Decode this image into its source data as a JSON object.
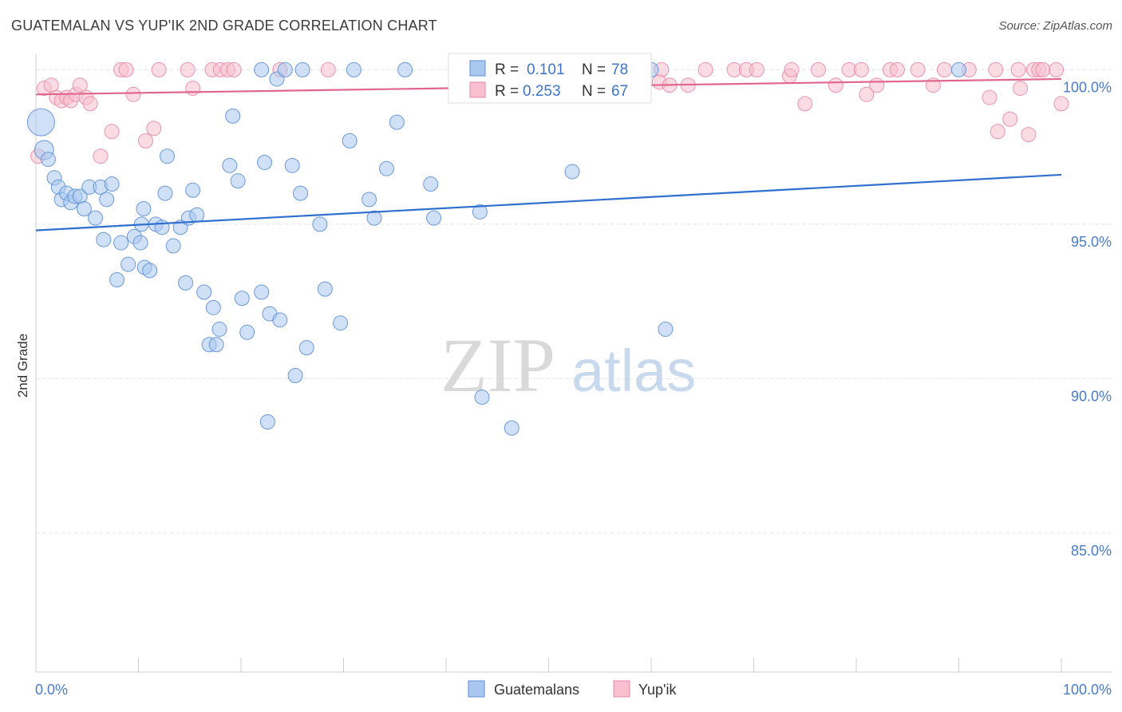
{
  "title": "GUATEMALAN VS YUP'IK 2ND GRADE CORRELATION CHART",
  "source": "Source: ZipAtlas.com",
  "watermark": {
    "zip": "ZIP",
    "atlas": "atlas"
  },
  "colors": {
    "blue_fill": "#a9c8f0",
    "blue_stroke": "#5d8fd6",
    "blue_line": "#2f6fcf",
    "pink_fill": "#f7bfd0",
    "pink_stroke": "#e88aa8",
    "pink_line": "#e06690",
    "tick_label": "#4a7cc9",
    "grid": "#e4e4e4"
  },
  "legend_top": [
    {
      "r_label": "R =",
      "r_value": "0.101",
      "n_label": "N =",
      "n_value": "78"
    },
    {
      "r_label": "R =",
      "r_value": "0.253",
      "n_label": "N =",
      "n_value": "67"
    }
  ],
  "chart_data": {
    "type": "scatter",
    "title": "GUATEMALAN VS YUP'IK 2ND GRADE CORRELATION CHART",
    "xlabel": "",
    "ylabel": "2nd Grade",
    "xlim": [
      0,
      100
    ],
    "ylim": [
      80.5,
      100.5
    ],
    "x_tick_labels": [
      "0.0%",
      "100.0%"
    ],
    "y_ticks": [
      85,
      90,
      95,
      100
    ],
    "y_tick_labels": [
      "85.0%",
      "90.0%",
      "95.0%",
      "100.0%"
    ],
    "grid": true,
    "legend_position": "bottom-center",
    "series": [
      {
        "name": "Guatemalans",
        "color": "#a9c8f0",
        "trend": {
          "x": [
            0,
            100
          ],
          "y": [
            94.8,
            96.6
          ]
        },
        "points": [
          [
            0.5,
            98.3,
            1
          ],
          [
            0.8,
            97.4,
            1
          ],
          [
            1.2,
            97.1,
            1
          ],
          [
            1.8,
            96.5,
            1
          ],
          [
            2.2,
            96.2,
            1
          ],
          [
            2.5,
            95.8,
            1
          ],
          [
            3.0,
            96.0,
            1
          ],
          [
            3.4,
            95.7,
            1
          ],
          [
            3.8,
            95.9,
            1
          ],
          [
            4.3,
            95.9,
            1
          ],
          [
            4.7,
            95.5,
            1
          ],
          [
            5.2,
            96.2,
            1
          ],
          [
            5.8,
            95.2,
            1
          ],
          [
            6.3,
            96.2,
            1
          ],
          [
            6.9,
            95.8,
            1
          ],
          [
            7.4,
            96.3,
            1
          ],
          [
            7.9,
            93.2,
            1
          ],
          [
            8.3,
            94.4,
            1
          ],
          [
            9.0,
            93.7,
            1
          ],
          [
            9.6,
            94.6,
            1
          ],
          [
            10.2,
            94.4,
            1
          ],
          [
            10.6,
            93.6,
            1
          ],
          [
            11.1,
            93.5,
            1
          ],
          [
            6.6,
            94.5,
            1
          ],
          [
            10.3,
            95.0,
            1
          ],
          [
            10.5,
            95.5,
            1
          ],
          [
            11.7,
            95.0,
            1
          ],
          [
            12.3,
            94.9,
            1
          ],
          [
            12.6,
            96.0,
            1
          ],
          [
            12.8,
            97.2,
            1
          ],
          [
            13.4,
            94.3,
            1
          ],
          [
            14.1,
            94.9,
            1
          ],
          [
            14.6,
            93.1,
            1
          ],
          [
            14.9,
            95.2,
            1
          ],
          [
            15.3,
            96.1,
            1
          ],
          [
            15.7,
            95.3,
            1
          ],
          [
            16.4,
            92.8,
            1
          ],
          [
            16.9,
            91.1,
            1
          ],
          [
            17.3,
            92.3,
            1
          ],
          [
            17.6,
            91.1,
            1
          ],
          [
            17.9,
            91.6,
            1
          ],
          [
            18.9,
            96.9,
            1
          ],
          [
            19.2,
            98.5,
            1
          ],
          [
            19.7,
            96.4,
            1
          ],
          [
            20.1,
            92.6,
            1
          ],
          [
            20.6,
            91.5,
            1
          ],
          [
            22.0,
            92.8,
            1
          ],
          [
            22.3,
            97.0,
            1
          ],
          [
            22.6,
            88.6,
            1
          ],
          [
            22.8,
            92.1,
            1
          ],
          [
            23.8,
            91.9,
            1
          ],
          [
            25.0,
            96.9,
            1
          ],
          [
            25.3,
            90.1,
            1
          ],
          [
            25.8,
            96.0,
            1
          ],
          [
            26.4,
            91.0,
            1
          ],
          [
            27.7,
            95.0,
            1
          ],
          [
            28.2,
            92.9,
            1
          ],
          [
            29.7,
            91.8,
            1
          ],
          [
            30.6,
            97.7,
            1
          ],
          [
            32.5,
            95.8,
            1
          ],
          [
            33.0,
            95.2,
            1
          ],
          [
            34.2,
            96.8,
            1
          ],
          [
            35.2,
            98.3,
            1
          ],
          [
            38.5,
            96.3,
            1
          ],
          [
            38.8,
            95.2,
            1
          ],
          [
            43.3,
            95.4,
            1
          ],
          [
            43.5,
            89.4,
            1
          ],
          [
            46.4,
            88.4,
            1
          ],
          [
            52.3,
            96.7,
            1
          ],
          [
            61.4,
            91.6,
            1
          ],
          [
            22.0,
            100.0,
            1
          ],
          [
            23.5,
            99.7,
            1
          ],
          [
            24.3,
            100.0,
            1
          ],
          [
            26.0,
            100.0,
            1
          ],
          [
            31.0,
            100.0,
            1
          ],
          [
            36.0,
            100.0,
            1
          ],
          [
            60.0,
            100.0,
            1
          ],
          [
            90.0,
            100.0,
            1
          ]
        ]
      },
      {
        "name": "Yup'ik",
        "color": "#f7bfd0",
        "trend": {
          "x": [
            0,
            100
          ],
          "y": [
            99.2,
            99.7
          ]
        },
        "points": [
          [
            0.2,
            97.2,
            1
          ],
          [
            0.8,
            99.4,
            1
          ],
          [
            1.5,
            99.5,
            1
          ],
          [
            2.0,
            99.1,
            1
          ],
          [
            2.5,
            99.0,
            1
          ],
          [
            3.0,
            99.1,
            1
          ],
          [
            3.4,
            99.0,
            1
          ],
          [
            3.9,
            99.2,
            1
          ],
          [
            4.3,
            99.5,
            1
          ],
          [
            4.9,
            99.1,
            1
          ],
          [
            5.3,
            98.9,
            1
          ],
          [
            6.3,
            97.2,
            1
          ],
          [
            7.4,
            98.0,
            1
          ],
          [
            8.3,
            100.0,
            1
          ],
          [
            8.8,
            100.0,
            1
          ],
          [
            9.5,
            99.2,
            1
          ],
          [
            10.7,
            97.7,
            1
          ],
          [
            11.5,
            98.1,
            1
          ],
          [
            12.0,
            100.0,
            1
          ],
          [
            14.8,
            100.0,
            1
          ],
          [
            15.3,
            99.4,
            1
          ],
          [
            17.2,
            100.0,
            1
          ],
          [
            18.0,
            100.0,
            1
          ],
          [
            18.7,
            100.0,
            1
          ],
          [
            19.3,
            100.0,
            1
          ],
          [
            23.8,
            100.0,
            1
          ],
          [
            28.5,
            100.0,
            1
          ],
          [
            41.5,
            100.0,
            1
          ],
          [
            43.0,
            100.0,
            1
          ],
          [
            47.5,
            100.0,
            1
          ],
          [
            54.0,
            100.0,
            1
          ],
          [
            57.5,
            100.0,
            1
          ],
          [
            61.0,
            100.0,
            1
          ],
          [
            60.8,
            99.6,
            1
          ],
          [
            61.8,
            99.5,
            1
          ],
          [
            63.6,
            99.5,
            1
          ],
          [
            65.3,
            100.0,
            1
          ],
          [
            68.1,
            100.0,
            1
          ],
          [
            69.3,
            100.0,
            1
          ],
          [
            70.3,
            100.0,
            1
          ],
          [
            73.5,
            99.8,
            1
          ],
          [
            73.7,
            100.0,
            1
          ],
          [
            75.0,
            98.9,
            1
          ],
          [
            76.3,
            100.0,
            1
          ],
          [
            78.0,
            99.5,
            1
          ],
          [
            79.3,
            100.0,
            1
          ],
          [
            80.5,
            100.0,
            1
          ],
          [
            81.0,
            99.2,
            1
          ],
          [
            82.0,
            99.5,
            1
          ],
          [
            83.3,
            100.0,
            1
          ],
          [
            84.0,
            100.0,
            1
          ],
          [
            86.0,
            100.0,
            1
          ],
          [
            87.5,
            99.5,
            1
          ],
          [
            88.6,
            100.0,
            1
          ],
          [
            91.0,
            100.0,
            1
          ],
          [
            93.0,
            99.1,
            1
          ],
          [
            93.8,
            98.0,
            1
          ],
          [
            93.6,
            100.0,
            1
          ],
          [
            95.0,
            98.4,
            1
          ],
          [
            95.8,
            100.0,
            1
          ],
          [
            96.0,
            99.4,
            1
          ],
          [
            96.8,
            97.9,
            1
          ],
          [
            97.3,
            100.0,
            1
          ],
          [
            97.8,
            100.0,
            1
          ],
          [
            98.2,
            100.0,
            1
          ],
          [
            99.5,
            100.0,
            1
          ],
          [
            100.0,
            98.9,
            1
          ]
        ]
      }
    ]
  }
}
